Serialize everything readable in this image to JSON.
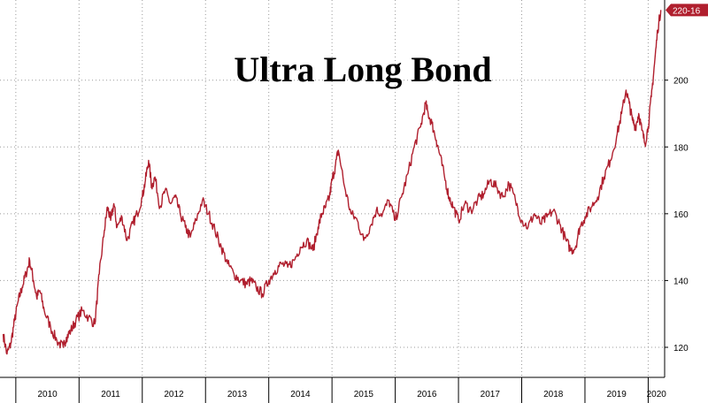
{
  "chart_data": {
    "type": "line",
    "title": "Ultra Long Bond",
    "xlabel": "",
    "ylabel": "",
    "x_tick_labels": [
      "2010",
      "2011",
      "2012",
      "2013",
      "2014",
      "2015",
      "2016",
      "2017",
      "2018",
      "2019",
      "2020"
    ],
    "y_ticks": [
      120,
      140,
      160,
      180,
      200
    ],
    "ylim": [
      111,
      224
    ],
    "xlim": [
      2009.75,
      2020.26
    ],
    "y_axis_side": "right",
    "grid": true,
    "last_value_label": "220-16",
    "series": [
      {
        "color": "#b01f2e",
        "x": [
          2009.8,
          2009.86,
          2009.92,
          2009.98,
          2010.04,
          2010.1,
          2010.16,
          2010.22,
          2010.28,
          2010.33,
          2010.38,
          2010.45,
          2010.55,
          2010.65,
          2010.75,
          2010.8,
          2010.87,
          2010.95,
          2011.05,
          2011.15,
          2011.25,
          2011.32,
          2011.4,
          2011.45,
          2011.5,
          2011.55,
          2011.6,
          2011.68,
          2011.76,
          2011.85,
          2011.92,
          2012.0,
          2012.05,
          2012.1,
          2012.15,
          2012.2,
          2012.28,
          2012.36,
          2012.45,
          2012.52,
          2012.6,
          2012.68,
          2012.76,
          2012.85,
          2012.95,
          2013.05,
          2013.15,
          2013.25,
          2013.35,
          2013.45,
          2013.55,
          2013.65,
          2013.72,
          2013.8,
          2013.9,
          2014.0,
          2014.1,
          2014.2,
          2014.3,
          2014.4,
          2014.5,
          2014.6,
          2014.7,
          2014.78,
          2014.84,
          2014.9,
          2014.96,
          2015.0,
          2015.05,
          2015.1,
          2015.2,
          2015.3,
          2015.4,
          2015.5,
          2015.6,
          2015.7,
          2015.8,
          2015.9,
          2016.0,
          2016.1,
          2016.2,
          2016.3,
          2016.4,
          2016.48,
          2016.52,
          2016.58,
          2016.65,
          2016.7,
          2016.78,
          2016.85,
          2016.92,
          2017.0,
          2017.1,
          2017.2,
          2017.3,
          2017.4,
          2017.5,
          2017.6,
          2017.7,
          2017.8,
          2017.9,
          2018.0,
          2018.1,
          2018.2,
          2018.3,
          2018.4,
          2018.5,
          2018.6,
          2018.7,
          2018.78,
          2018.85,
          2018.92,
          2019.0,
          2019.1,
          2019.2,
          2019.3,
          2019.4,
          2019.5,
          2019.58,
          2019.65,
          2019.7,
          2019.75,
          2019.8,
          2019.85,
          2019.9,
          2019.95,
          2020.0,
          2020.05,
          2020.1,
          2020.15,
          2020.2
        ],
        "y": [
          124,
          118,
          121,
          128,
          134,
          138,
          142,
          146,
          140,
          135,
          137,
          131,
          126,
          122,
          120,
          123,
          125,
          128,
          131,
          129,
          127,
          142,
          155,
          162,
          158,
          163,
          156,
          159,
          152,
          157,
          160,
          165,
          170,
          176,
          168,
          171,
          162,
          167,
          163,
          165,
          160,
          156,
          153,
          158,
          164,
          160,
          155,
          150,
          145,
          142,
          140,
          139,
          140,
          138,
          136,
          140,
          143,
          145,
          144,
          146,
          150,
          152,
          149,
          156,
          160,
          162,
          165,
          170,
          174,
          179,
          168,
          160,
          158,
          152,
          156,
          161,
          160,
          164,
          158,
          165,
          172,
          180,
          186,
          193,
          190,
          187,
          182,
          178,
          171,
          165,
          162,
          158,
          163,
          161,
          164,
          166,
          170,
          168,
          165,
          169,
          164,
          158,
          156,
          160,
          157,
          159,
          161,
          157,
          152,
          149,
          150,
          156,
          159,
          162,
          165,
          171,
          176,
          183,
          190,
          197,
          193,
          188,
          186,
          190,
          185,
          181,
          186,
          195,
          205,
          215,
          221
        ]
      }
    ]
  }
}
